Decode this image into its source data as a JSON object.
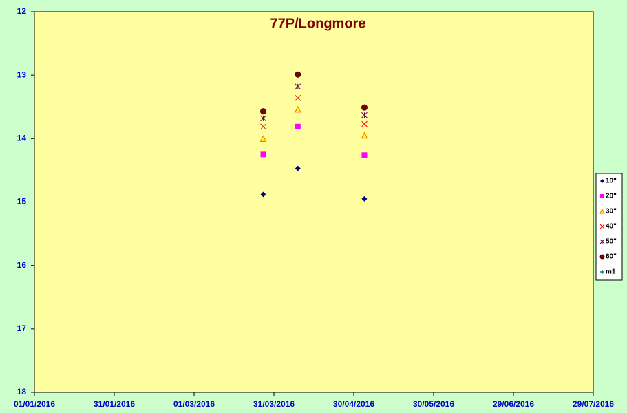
{
  "chart_data": {
    "type": "scatter",
    "title": "77P/Longmore",
    "x": [
      "2016-03-27",
      "2016-04-09",
      "2016-05-04"
    ],
    "series": [
      {
        "name": "10\"",
        "color": "#000080",
        "marker": "diamond",
        "values": [
          14.88,
          14.47,
          14.95
        ]
      },
      {
        "name": "20\"",
        "color": "#ff00ff",
        "marker": "square",
        "values": [
          14.25,
          13.81,
          14.26
        ]
      },
      {
        "name": "30\"",
        "color": "#ff6600",
        "marker": "triangle",
        "values": [
          14.0,
          13.54,
          13.95
        ]
      },
      {
        "name": "40\"",
        "color": "#ff0000",
        "marker": "x",
        "values": [
          13.81,
          13.36,
          13.77
        ]
      },
      {
        "name": "50\"",
        "color": "#660066",
        "marker": "star",
        "values": [
          13.68,
          13.18,
          13.63
        ]
      },
      {
        "name": "60\"",
        "color": "#800000",
        "marker": "circle",
        "values": [
          13.57,
          12.99,
          13.51
        ]
      },
      {
        "name": "m1",
        "color": "#008080",
        "marker": "plus",
        "values": [
          null,
          null,
          null
        ]
      }
    ],
    "xlim": [
      "2016-01-01",
      "2016-07-29"
    ],
    "xticks": [
      {
        "value": "2016-01-01",
        "label": "01/01/2016"
      },
      {
        "value": "2016-01-31",
        "label": "31/01/2016"
      },
      {
        "value": "2016-03-01",
        "label": "01/03/2016"
      },
      {
        "value": "2016-03-31",
        "label": "31/03/2016"
      },
      {
        "value": "2016-04-30",
        "label": "30/04/2016"
      },
      {
        "value": "2016-05-30",
        "label": "30/05/2016"
      },
      {
        "value": "2016-06-29",
        "label": "29/06/2016"
      },
      {
        "value": "2016-07-29",
        "label": "29/07/2016"
      }
    ],
    "ylim": [
      12,
      18
    ],
    "yticks": [
      12,
      13,
      14,
      15,
      16,
      17,
      18
    ],
    "y_inverted": true,
    "grid": false,
    "legend": "right"
  }
}
